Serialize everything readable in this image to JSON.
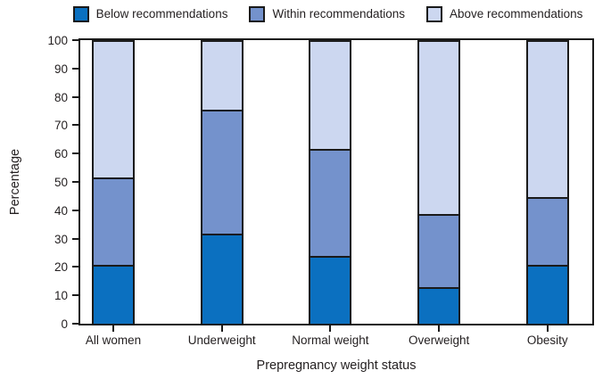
{
  "colors": {
    "background": "#ffffff",
    "axis_text": "#231f20",
    "frame": "#1a1a1a",
    "bar_outline": "#1a1a1a"
  },
  "chart_data": {
    "type": "bar",
    "stacked": true,
    "categories": [
      "All women",
      "Underweight",
      "Normal weight",
      "Overweight",
      "Obesity"
    ],
    "series": [
      {
        "name": "Below recommendations",
        "color": "#0b70c0",
        "values": [
          21,
          32,
          24,
          13,
          21
        ]
      },
      {
        "name": "Within recommendations",
        "color": "#7492cc",
        "values": [
          31,
          44,
          38,
          26,
          24
        ]
      },
      {
        "name": "Above recommendations",
        "color": "#ccd7f0",
        "values": [
          48,
          24,
          38,
          61,
          55
        ]
      }
    ],
    "stack_boundaries_note": "cumulative tops: All women 21/52/100, Underweight 32/76/100, Normal weight 24/62/100, Overweight 13/39/100, Obesity 21/45/100",
    "xlabel": "Prepregnancy weight status",
    "ylabel": "Percentage",
    "ylim": [
      0,
      100
    ],
    "yticks": [
      0,
      10,
      20,
      30,
      40,
      50,
      60,
      70,
      80,
      90,
      100
    ],
    "grid": false,
    "legend_position": "top"
  }
}
